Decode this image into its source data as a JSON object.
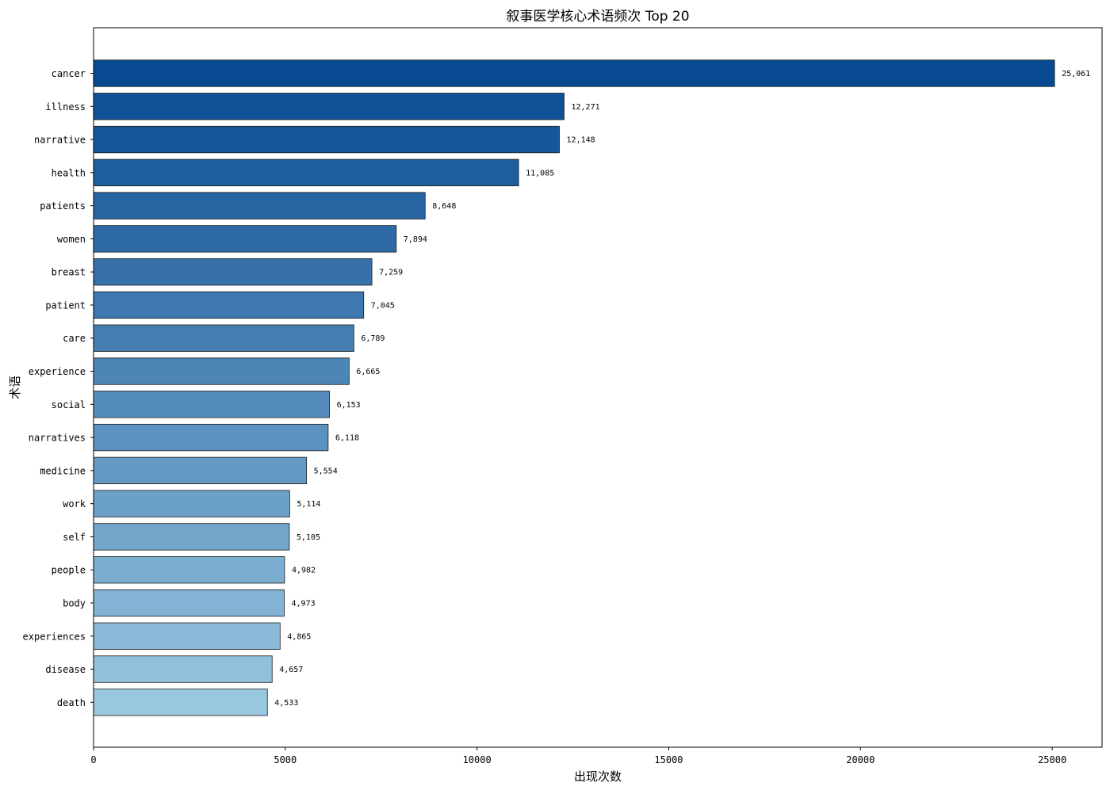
{
  "chart_data": {
    "type": "bar",
    "orientation": "horizontal",
    "title": "叙事医学核心术语频次 Top 20",
    "xlabel": "出现次数",
    "ylabel": "术语",
    "xlim": [
      0,
      26300
    ],
    "xticks": [
      0,
      5000,
      10000,
      15000,
      20000,
      25000
    ],
    "grid": false,
    "color_scale": "Blues (dark to light)",
    "color_dark": "#084a91",
    "color_light": "#99c7e0",
    "categories": [
      "cancer",
      "illness",
      "narrative",
      "health",
      "patients",
      "women",
      "breast",
      "patient",
      "care",
      "experience",
      "social",
      "narratives",
      "medicine",
      "work",
      "self",
      "people",
      "body",
      "experiences",
      "disease",
      "death"
    ],
    "values": [
      25061,
      12271,
      12148,
      11085,
      8648,
      7894,
      7259,
      7045,
      6789,
      6665,
      6153,
      6118,
      5554,
      5114,
      5105,
      4982,
      4973,
      4865,
      4657,
      4533
    ],
    "value_labels": [
      "25,061",
      "12,271",
      "12,148",
      "11,085",
      "8,648",
      "7,894",
      "7,259",
      "7,045",
      "6,789",
      "6,665",
      "6,153",
      "6,118",
      "5,554",
      "5,114",
      "5,105",
      "4,982",
      "4,973",
      "4,865",
      "4,657",
      "4,533"
    ]
  }
}
